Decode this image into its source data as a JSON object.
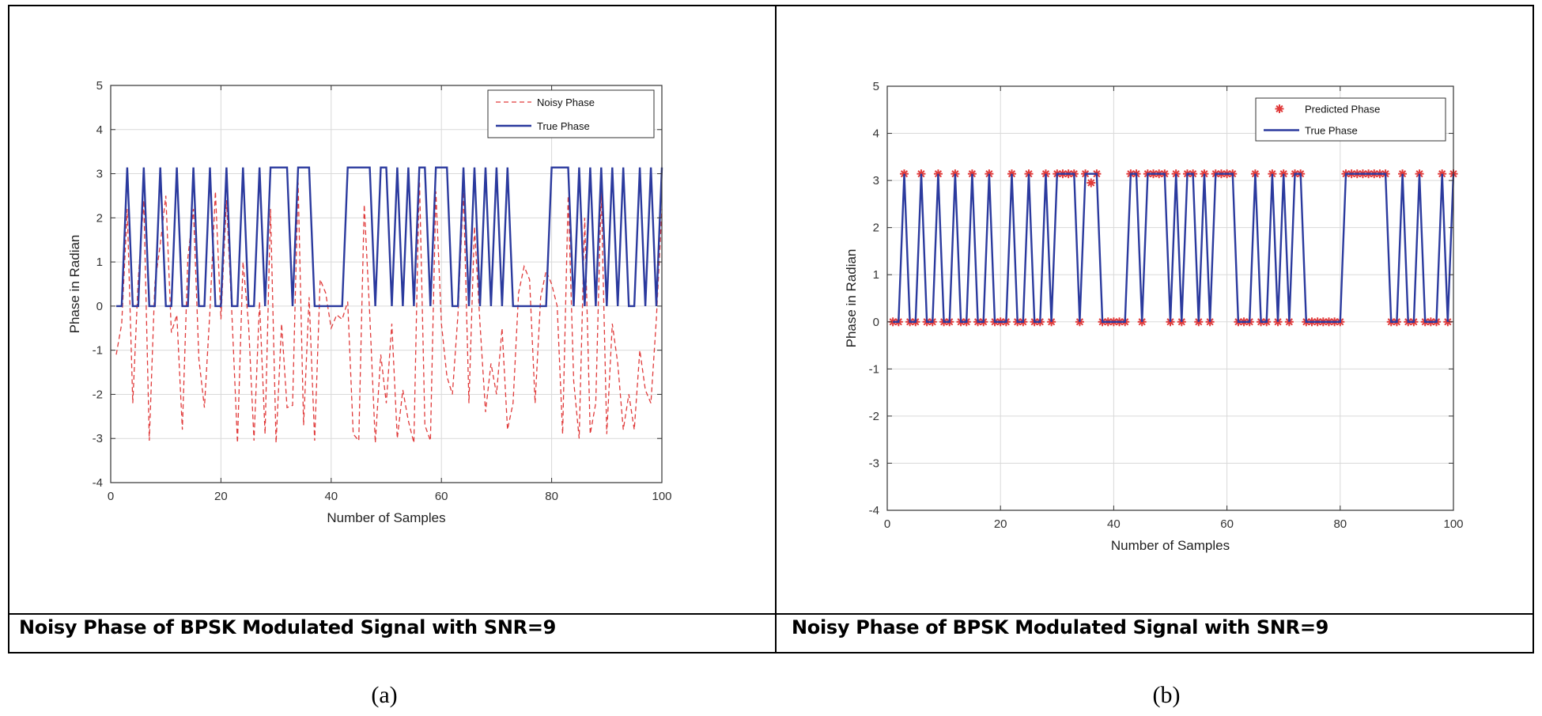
{
  "captions": {
    "a": "Noisy Phase of BPSK Modulated Signal with SNR=9",
    "b": "Noisy Phase of BPSK Modulated Signal with SNR=9"
  },
  "subfigure_labels": {
    "a": "(a)",
    "b": "(b)"
  },
  "colors": {
    "true_phase": "#2b3a9e",
    "noisy_phase": "#e03a3a",
    "predicted_phase": "#e03a3a",
    "grid": "#d9d9d9"
  },
  "chart_data": [
    {
      "type": "line",
      "title": "",
      "xlabel": "Number of Samples",
      "ylabel": "Phase in Radian",
      "xlim": [
        0,
        100
      ],
      "ylim": [
        -4,
        5
      ],
      "xticks": [
        0,
        20,
        40,
        60,
        80,
        100
      ],
      "yticks": [
        -4,
        -3,
        -2,
        -1,
        0,
        1,
        2,
        3,
        4,
        5
      ],
      "grid": true,
      "legend_position": "top-right",
      "legend": [
        "Noisy Phase",
        "True Phase"
      ],
      "x": [
        1,
        2,
        3,
        4,
        5,
        6,
        7,
        8,
        9,
        10,
        11,
        12,
        13,
        14,
        15,
        16,
        17,
        18,
        19,
        20,
        21,
        22,
        23,
        24,
        25,
        26,
        27,
        28,
        29,
        30,
        31,
        32,
        33,
        34,
        35,
        36,
        37,
        38,
        39,
        40,
        41,
        42,
        43,
        44,
        45,
        46,
        47,
        48,
        49,
        50,
        51,
        52,
        53,
        54,
        55,
        56,
        57,
        58,
        59,
        60,
        61,
        62,
        63,
        64,
        65,
        66,
        67,
        68,
        69,
        70,
        71,
        72,
        73,
        74,
        75,
        76,
        77,
        78,
        79,
        80,
        81,
        82,
        83,
        84,
        85,
        86,
        87,
        88,
        89,
        90,
        91,
        92,
        93,
        94,
        95,
        96,
        97,
        98,
        99,
        100
      ],
      "series": [
        {
          "name": "Noisy Phase",
          "style": "dashed",
          "values": [
            -1.1,
            -0.4,
            2.2,
            -2.2,
            0.6,
            2.4,
            -3.05,
            0.5,
            1.4,
            2.5,
            -0.6,
            -0.2,
            -2.8,
            1.1,
            2.2,
            -1.2,
            -2.3,
            -0.1,
            2.6,
            -0.3,
            2.4,
            -0.2,
            -3.1,
            1.0,
            -0.4,
            -3.05,
            0.1,
            -2.9,
            2.2,
            -3.1,
            -0.4,
            -2.3,
            -2.25,
            2.8,
            -2.7,
            0.2,
            -3.05,
            0.6,
            0.3,
            -0.5,
            -0.2,
            -0.3,
            0.1,
            -2.9,
            -3.05,
            2.3,
            -0.2,
            -3.1,
            -1.1,
            -2.2,
            -0.4,
            -3.0,
            -1.9,
            -2.6,
            -3.1,
            3.0,
            -2.7,
            -3.05,
            2.6,
            -0.4,
            -1.6,
            -2.0,
            -0.2,
            2.6,
            -2.2,
            1.8,
            -0.4,
            -2.4,
            -1.3,
            -2.0,
            -0.5,
            -2.8,
            -2.2,
            0.3,
            0.9,
            0.6,
            -2.2,
            0.2,
            0.8,
            0.5,
            0.0,
            -2.9,
            2.5,
            -1.7,
            -3.0,
            2.0,
            -2.9,
            -2.2,
            2.6,
            -2.9,
            -0.4,
            -1.3,
            -2.8,
            -2.0,
            -2.8,
            -1.0,
            -1.9,
            -2.2,
            -0.3,
            2.2
          ]
        },
        {
          "name": "True Phase",
          "style": "solid",
          "values": [
            0,
            0,
            3.1416,
            0,
            0,
            3.1416,
            0,
            0,
            3.1416,
            0,
            0,
            3.1416,
            0,
            0,
            3.1416,
            0,
            0,
            3.1416,
            0,
            0,
            3.1416,
            0,
            0,
            3.1416,
            0,
            0,
            3.1416,
            0,
            3.1416,
            3.1416,
            3.1416,
            3.1416,
            0,
            3.1416,
            3.1416,
            3.1416,
            0,
            0,
            0,
            0,
            0,
            0,
            3.1416,
            3.1416,
            3.1416,
            3.1416,
            3.1416,
            0,
            3.1416,
            3.1416,
            0,
            3.1416,
            0,
            3.1416,
            0,
            3.1416,
            3.1416,
            0,
            3.1416,
            3.1416,
            3.1416,
            0,
            0,
            3.1416,
            0,
            3.1416,
            0,
            3.1416,
            0,
            3.1416,
            0,
            3.1416,
            0,
            0,
            0,
            0,
            0,
            0,
            0,
            3.1416,
            3.1416,
            3.1416,
            3.1416,
            0,
            3.1416,
            0,
            3.1416,
            0,
            3.1416,
            0,
            3.1416,
            0,
            3.1416,
            0,
            0,
            3.1416,
            0,
            3.1416,
            0,
            3.1416
          ]
        }
      ]
    },
    {
      "type": "line",
      "title": "",
      "xlabel": "Number of Samples",
      "ylabel": "Phase in Radian",
      "xlim": [
        0,
        100
      ],
      "ylim": [
        -4,
        5
      ],
      "xticks": [
        0,
        20,
        40,
        60,
        80,
        100
      ],
      "yticks": [
        -4,
        -3,
        -2,
        -1,
        0,
        1,
        2,
        3,
        4,
        5
      ],
      "grid": true,
      "legend_position": "top-right",
      "legend": [
        "Predicted Phase",
        "True Phase"
      ],
      "x": [
        1,
        2,
        3,
        4,
        5,
        6,
        7,
        8,
        9,
        10,
        11,
        12,
        13,
        14,
        15,
        16,
        17,
        18,
        19,
        20,
        21,
        22,
        23,
        24,
        25,
        26,
        27,
        28,
        29,
        30,
        31,
        32,
        33,
        34,
        35,
        36,
        37,
        38,
        39,
        40,
        41,
        42,
        43,
        44,
        45,
        46,
        47,
        48,
        49,
        50,
        51,
        52,
        53,
        54,
        55,
        56,
        57,
        58,
        59,
        60,
        61,
        62,
        63,
        64,
        65,
        66,
        67,
        68,
        69,
        70,
        71,
        72,
        73,
        74,
        75,
        76,
        77,
        78,
        79,
        80,
        81,
        82,
        83,
        84,
        85,
        86,
        87,
        88,
        89,
        90,
        91,
        92,
        93,
        94,
        95,
        96,
        97,
        98,
        99,
        100
      ],
      "series": [
        {
          "name": "Predicted Phase",
          "style": "markers",
          "values": [
            0,
            0,
            3.1416,
            0,
            0,
            3.1416,
            0,
            0,
            3.1416,
            0,
            0,
            3.1416,
            0,
            0,
            3.1416,
            0,
            0,
            3.1416,
            0,
            0,
            0,
            3.1416,
            0,
            0,
            3.1416,
            0,
            0,
            3.1416,
            0,
            3.1416,
            3.1416,
            3.1416,
            3.1416,
            0,
            3.1416,
            2.95,
            3.1416,
            0,
            0,
            0,
            0,
            0,
            3.1416,
            3.1416,
            0,
            3.1416,
            3.1416,
            3.1416,
            3.1416,
            0,
            3.1416,
            0,
            3.1416,
            3.1416,
            0,
            3.1416,
            0,
            3.1416,
            3.1416,
            3.1416,
            3.1416,
            0,
            0,
            0,
            3.1416,
            0,
            0,
            3.1416,
            0,
            3.1416,
            0,
            3.1416,
            3.1416,
            0,
            0,
            0,
            0,
            0,
            0,
            0,
            3.1416,
            3.1416,
            3.1416,
            3.1416,
            3.1416,
            3.1416,
            3.1416,
            3.1416,
            0,
            0,
            3.1416,
            0,
            0,
            3.1416,
            0,
            0,
            0,
            3.1416,
            0,
            3.1416
          ]
        },
        {
          "name": "True Phase",
          "style": "solid",
          "values": [
            0,
            0,
            3.1416,
            0,
            0,
            3.1416,
            0,
            0,
            3.1416,
            0,
            0,
            3.1416,
            0,
            0,
            3.1416,
            0,
            0,
            3.1416,
            0,
            0,
            0,
            3.1416,
            0,
            0,
            3.1416,
            0,
            0,
            3.1416,
            0,
            3.1416,
            3.1416,
            3.1416,
            3.1416,
            0,
            3.1416,
            3.1416,
            3.1416,
            0,
            0,
            0,
            0,
            0,
            3.1416,
            3.1416,
            0,
            3.1416,
            3.1416,
            3.1416,
            3.1416,
            0,
            3.1416,
            0,
            3.1416,
            3.1416,
            0,
            3.1416,
            0,
            3.1416,
            3.1416,
            3.1416,
            3.1416,
            0,
            0,
            0,
            3.1416,
            0,
            0,
            3.1416,
            0,
            3.1416,
            0,
            3.1416,
            3.1416,
            0,
            0,
            0,
            0,
            0,
            0,
            0,
            3.1416,
            3.1416,
            3.1416,
            3.1416,
            3.1416,
            3.1416,
            3.1416,
            3.1416,
            0,
            0,
            3.1416,
            0,
            0,
            3.1416,
            0,
            0,
            0,
            3.1416,
            0,
            3.1416
          ]
        }
      ]
    }
  ]
}
